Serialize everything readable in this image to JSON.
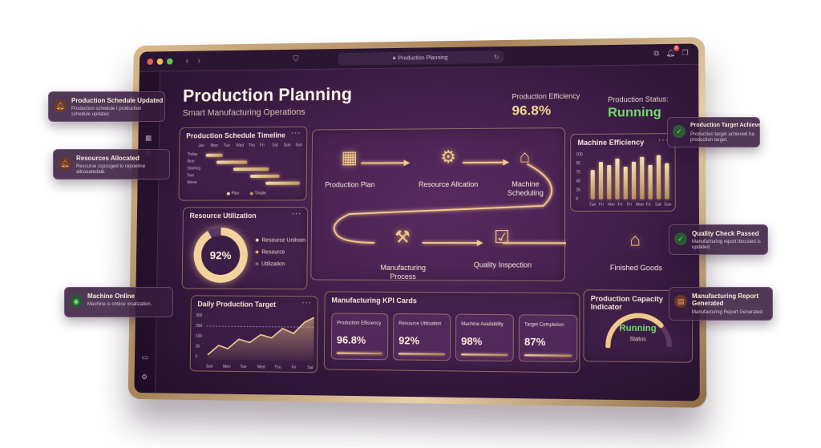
{
  "browser": {
    "url": "Production Planning",
    "bell_badge": "8"
  },
  "header": {
    "title": "Production Planning",
    "subtitle": "Smart Manufacturing Operations",
    "efficiency_label": "Production Efficiency",
    "efficiency_value": "96.8%",
    "status_label": "Production Status:",
    "status_value": "Running"
  },
  "schedule": {
    "title": "Production Schedule Timeline",
    "days": [
      "Jan",
      "Mon",
      "Tue",
      "Wed",
      "Thu",
      "Fri",
      "Sat",
      "Sun",
      "Sun"
    ],
    "rows": [
      "Today",
      "Ron",
      "Starting",
      "Sun",
      "Wene"
    ],
    "legend": [
      "Plan",
      "Timple"
    ]
  },
  "resource": {
    "title": "Resource Utilization",
    "value": "92%",
    "percent": 92,
    "legend": [
      "Resource Unitnon",
      "Resource",
      "Utilization"
    ]
  },
  "flow": {
    "steps": [
      "Production Plan",
      "Resource Allcation",
      "Machine Scheduling",
      "Manufacturing Process",
      "Quality Inspection",
      "Finished Goods"
    ]
  },
  "machine": {
    "title": "Machine Efficiency",
    "days": [
      "Tue",
      "Fri",
      "Mer",
      "Fri",
      "Fri",
      "Mon",
      "Fri",
      "Sat",
      "Sun"
    ],
    "yticks": [
      "100",
      "95",
      "75",
      "40",
      "25",
      "0"
    ]
  },
  "daily": {
    "title": "Daily Production Target",
    "yticks": [
      "300",
      "250",
      "100",
      "30",
      "0"
    ],
    "days": [
      "Sun",
      "Mon",
      "Tue",
      "Wed",
      "Thu",
      "Fri",
      "Sat"
    ]
  },
  "kpi": {
    "title": "Manufacturing KPI Cards",
    "cards": [
      {
        "label": "Production Efficiency",
        "value": "96.8%"
      },
      {
        "label": "Resource Utilisation",
        "value": "92%"
      },
      {
        "label": "Machine Availability",
        "value": "98%"
      },
      {
        "label": "Target Completion",
        "value": "87%"
      }
    ]
  },
  "capacity": {
    "title": "Production Capacity Indicator",
    "value": "Running",
    "sub": "Status"
  },
  "notifications": [
    {
      "title": "Production Schedule Updated",
      "desc": "Production schedule t production schedule updates"
    },
    {
      "title": "Resources Allocated",
      "desc": "Rescurse sspcoged to repoetine allcoeatedaib."
    },
    {
      "title": "Machine Online",
      "desc": "Machine is ontiice visalization."
    },
    {
      "title": "Production Target Achieved",
      "desc": "Production target achieved ha production target."
    },
    {
      "title": "Quality Check Passed",
      "desc": "Manufacturing report tbncsted is updated."
    },
    {
      "title": "Manufacturing Report Generated",
      "desc": "Manufacturing Report Generated."
    }
  ],
  "colors": {
    "accent": "#f2c98a",
    "running": "#6ee06a",
    "background": "#3a1a42"
  }
}
